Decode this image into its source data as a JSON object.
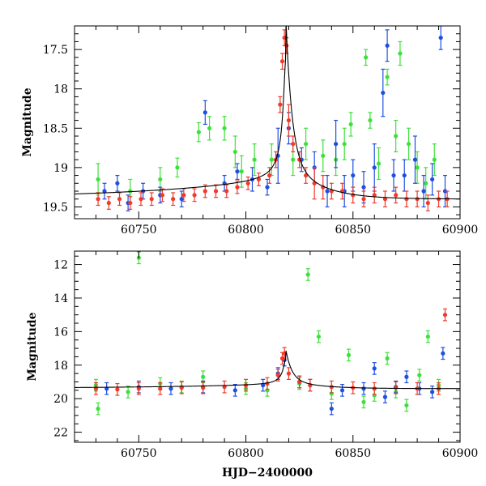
{
  "figure": {
    "xlabel": "HJD−2400000"
  },
  "colors": {
    "blue": "#1f4fe0",
    "red": "#f03a2a",
    "green": "#3ee03a",
    "model": "#000000"
  },
  "chart_data": [
    {
      "type": "scatter",
      "title": "",
      "xlabel": "",
      "ylabel": "Magnitude",
      "xlim": [
        60720,
        60900
      ],
      "ylim": [
        19.65,
        17.2
      ],
      "y_inverted": true,
      "x_ticks": [
        60750,
        60800,
        60850,
        60900
      ],
      "y_ticks": [
        17.5,
        18,
        18.5,
        19,
        19.5
      ],
      "grid": false,
      "legend": "none",
      "series": [
        {
          "color": "green",
          "points": [
            [
              60731,
              19.15,
              0.2
            ],
            [
              60746,
              19.3,
              0.15
            ],
            [
              60760,
              19.15,
              0.15
            ],
            [
              60768,
              19.0,
              0.12
            ],
            [
              60778,
              18.55,
              0.12
            ],
            [
              60783,
              18.5,
              0.15
            ],
            [
              60790,
              18.5,
              0.15
            ],
            [
              60795,
              18.8,
              0.2
            ],
            [
              60798,
              19.05,
              0.2
            ],
            [
              60804,
              18.9,
              0.2
            ],
            [
              60812,
              18.9,
              0.2
            ],
            [
              60822,
              18.9,
              0.2
            ],
            [
              60828,
              18.7,
              0.2
            ],
            [
              60836,
              18.85,
              0.2
            ],
            [
              60842,
              18.9,
              0.2
            ],
            [
              60846,
              18.7,
              0.2
            ],
            [
              60849,
              18.45,
              0.15
            ],
            [
              60856,
              17.6,
              0.1
            ],
            [
              60858,
              18.4,
              0.1
            ],
            [
              60862,
              18.95,
              0.2
            ],
            [
              60866,
              17.85,
              0.1
            ],
            [
              60870,
              18.6,
              0.2
            ],
            [
              60872,
              17.55,
              0.15
            ],
            [
              60876,
              18.7,
              0.2
            ],
            [
              60880,
              19.0,
              0.2
            ],
            [
              60884,
              19.2,
              0.2
            ],
            [
              60888,
              18.9,
              0.2
            ]
          ]
        },
        {
          "color": "blue",
          "points": [
            [
              60734,
              19.3,
              0.1
            ],
            [
              60740,
              19.2,
              0.1
            ],
            [
              60745,
              19.45,
              0.1
            ],
            [
              60752,
              19.3,
              0.1
            ],
            [
              60760,
              19.35,
              0.1
            ],
            [
              60770,
              19.4,
              0.1
            ],
            [
              60781,
              18.3,
              0.15
            ],
            [
              60790,
              19.2,
              0.1
            ],
            [
              60796,
              19.05,
              0.1
            ],
            [
              60803,
              19.15,
              0.15
            ],
            [
              60810,
              19.25,
              0.1
            ],
            [
              60815,
              18.85,
              0.35
            ],
            [
              60820,
              18.5,
              0.2
            ],
            [
              60826,
              18.9,
              0.15
            ],
            [
              60832,
              19.0,
              0.2
            ],
            [
              60838,
              19.3,
              0.2
            ],
            [
              60842,
              18.7,
              0.3
            ],
            [
              60846,
              19.3,
              0.2
            ],
            [
              60850,
              19.1,
              0.2
            ],
            [
              60855,
              19.25,
              0.2
            ],
            [
              60860,
              19.0,
              0.3
            ],
            [
              60864,
              18.05,
              0.3
            ],
            [
              60866,
              17.45,
              0.2
            ],
            [
              60869,
              19.1,
              0.2
            ],
            [
              60874,
              19.1,
              0.2
            ],
            [
              60879,
              18.9,
              0.3
            ],
            [
              60883,
              19.3,
              0.2
            ],
            [
              60887,
              19.15,
              0.2
            ],
            [
              60891,
              17.35,
              0.15
            ],
            [
              60893,
              19.3,
              0.2
            ]
          ]
        },
        {
          "color": "red",
          "points": [
            [
              60731,
              19.4,
              0.08
            ],
            [
              60736,
              19.45,
              0.08
            ],
            [
              60741,
              19.4,
              0.08
            ],
            [
              60746,
              19.45,
              0.08
            ],
            [
              60751,
              19.4,
              0.08
            ],
            [
              60756,
              19.4,
              0.08
            ],
            [
              60761,
              19.35,
              0.08
            ],
            [
              60766,
              19.4,
              0.08
            ],
            [
              60771,
              19.35,
              0.08
            ],
            [
              60776,
              19.35,
              0.08
            ],
            [
              60781,
              19.3,
              0.08
            ],
            [
              60786,
              19.3,
              0.08
            ],
            [
              60791,
              19.3,
              0.08
            ],
            [
              60796,
              19.25,
              0.08
            ],
            [
              60801,
              19.2,
              0.08
            ],
            [
              60806,
              19.15,
              0.08
            ],
            [
              60811,
              19.1,
              0.1
            ],
            [
              60814,
              18.9,
              0.1
            ],
            [
              60816,
              18.2,
              0.1
            ],
            [
              60817,
              17.65,
              0.1
            ],
            [
              60818,
              17.35,
              0.1
            ],
            [
              60819,
              17.45,
              0.1
            ],
            [
              60820,
              18.4,
              0.2
            ],
            [
              60822,
              18.7,
              0.1
            ],
            [
              60825,
              18.9,
              0.1
            ],
            [
              60828,
              19.1,
              0.1
            ],
            [
              60832,
              19.2,
              0.2
            ],
            [
              60836,
              19.25,
              0.15
            ],
            [
              60840,
              19.3,
              0.1
            ],
            [
              60845,
              19.3,
              0.1
            ],
            [
              60850,
              19.35,
              0.1
            ],
            [
              60855,
              19.4,
              0.1
            ],
            [
              60860,
              19.35,
              0.1
            ],
            [
              60865,
              19.4,
              0.1
            ],
            [
              60870,
              19.35,
              0.1
            ],
            [
              60875,
              19.4,
              0.1
            ],
            [
              60880,
              19.4,
              0.1
            ],
            [
              60885,
              19.45,
              0.1
            ],
            [
              60890,
              19.4,
              0.1
            ],
            [
              60894,
              19.4,
              0.1
            ]
          ]
        }
      ]
    },
    {
      "type": "scatter",
      "title": "",
      "xlabel": "HJD−2400000",
      "ylabel": "Magnitude",
      "xlim": [
        60720,
        60900
      ],
      "ylim": [
        22.6,
        11.2
      ],
      "y_inverted": true,
      "x_ticks": [
        60750,
        60800,
        60850,
        60900
      ],
      "y_ticks": [
        12,
        14,
        16,
        18,
        20,
        22
      ],
      "grid": false,
      "legend": "none",
      "series": [
        {
          "color": "green",
          "points": [
            [
              60730,
              19.2
            ],
            [
              60731,
              20.6
            ],
            [
              60745,
              19.6
            ],
            [
              60750,
              11.6
            ],
            [
              60760,
              19.1
            ],
            [
              60770,
              19.3
            ],
            [
              60780,
              18.7
            ],
            [
              60800,
              19.4
            ],
            [
              60810,
              19.5
            ],
            [
              60825,
              19.1
            ],
            [
              60829,
              12.6
            ],
            [
              60834,
              16.3
            ],
            [
              60840,
              19.7
            ],
            [
              60848,
              17.4
            ],
            [
              60855,
              20.2
            ],
            [
              60860,
              19.8
            ],
            [
              60866,
              17.6
            ],
            [
              60870,
              19.6
            ],
            [
              60875,
              20.4
            ],
            [
              60881,
              18.6
            ],
            [
              60885,
              16.3
            ],
            [
              60890,
              19.2
            ]
          ]
        },
        {
          "color": "blue",
          "points": [
            [
              60735,
              19.4
            ],
            [
              60750,
              19.3
            ],
            [
              60765,
              19.4
            ],
            [
              60780,
              19.3
            ],
            [
              60795,
              19.5
            ],
            [
              60808,
              19.2
            ],
            [
              60815,
              18.5
            ],
            [
              60818,
              17.7
            ],
            [
              60825,
              19.0
            ],
            [
              60830,
              19.2
            ],
            [
              60840,
              20.6
            ],
            [
              60845,
              19.5
            ],
            [
              60855,
              19.4
            ],
            [
              60860,
              18.2
            ],
            [
              60865,
              19.9
            ],
            [
              60870,
              19.3
            ],
            [
              60875,
              18.7
            ],
            [
              60881,
              19.4
            ],
            [
              60887,
              19.6
            ],
            [
              60892,
              17.3
            ]
          ]
        },
        {
          "color": "red",
          "points": [
            [
              60730,
              19.4
            ],
            [
              60740,
              19.45
            ],
            [
              60750,
              19.4
            ],
            [
              60760,
              19.4
            ],
            [
              60770,
              19.35
            ],
            [
              60780,
              19.35
            ],
            [
              60790,
              19.3
            ],
            [
              60800,
              19.2
            ],
            [
              60810,
              19.1
            ],
            [
              60815,
              18.6
            ],
            [
              60817,
              17.6
            ],
            [
              60818,
              17.3
            ],
            [
              60820,
              18.5
            ],
            [
              60825,
              19.0
            ],
            [
              60830,
              19.2
            ],
            [
              60840,
              19.3
            ],
            [
              60850,
              19.35
            ],
            [
              60860,
              19.4
            ],
            [
              60870,
              19.35
            ],
            [
              60880,
              19.4
            ],
            [
              60890,
              19.4
            ],
            [
              60893,
              15.0
            ]
          ]
        }
      ]
    }
  ]
}
